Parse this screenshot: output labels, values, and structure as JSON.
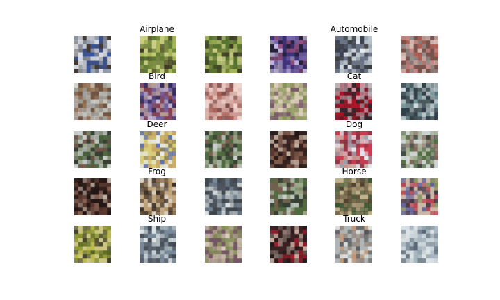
{
  "figure": {
    "class_labels": [
      "Airplane",
      "Automobile",
      "Bird",
      "Cat",
      "Deer",
      "Dog",
      "Frog",
      "Horse",
      "Ship",
      "Truck"
    ]
  },
  "palettes": {
    "airplane": [
      "#2c4ea3",
      "#9aa6b8",
      "#e8ecf2",
      "#3a2c22",
      "#cfd6df"
    ],
    "green": [
      "#4d6b2a",
      "#a7b65a",
      "#d3d58e",
      "#2f2a1e",
      "#6f7e3e"
    ],
    "violet": [
      "#3b2e7a",
      "#7e6bb5",
      "#cfc2e6",
      "#1c1a2e",
      "#9e4f7c"
    ],
    "mono": [
      "#1e2030",
      "#e7ecef",
      "#5a6478",
      "#b8c4cc",
      "#222222"
    ],
    "salmon": [
      "#b55b4f",
      "#d4908a",
      "#8f8f8f",
      "#e8d3cc",
      "#6b4b45"
    ],
    "pale": [
      "#c8cfd0",
      "#9e7a5c",
      "#6c5040",
      "#e4e6e2",
      "#a0a8a6"
    ],
    "purple": [
      "#2a244e",
      "#7260a0",
      "#d6c8d8",
      "#8b3b3f",
      "#c8a98f"
    ],
    "pink": [
      "#c9918b",
      "#f1d8d0",
      "#9c4d42",
      "#6b3a38",
      "#d8b2a8"
    ],
    "olive": [
      "#7c8a4c",
      "#c2b79a",
      "#6a4a5e",
      "#e1d5c2",
      "#8d9d5e"
    ],
    "red": [
      "#c4142a",
      "#7a1220",
      "#e2a4b0",
      "#2a2a2e",
      "#d0d6d8"
    ],
    "sky": [
      "#1d2934",
      "#d9e3e6",
      "#6e8f94",
      "#3c4c50",
      "#b8c6c8"
    ],
    "forest": [
      "#4a6e3e",
      "#7c5e50",
      "#d8e4e2",
      "#2e3c30",
      "#a4b494"
    ],
    "flower": [
      "#d6c86a",
      "#e9eef2",
      "#4d5fa8",
      "#7a6d3a",
      "#c49c4e"
    ],
    "dark": [
      "#2c1c1a",
      "#5a3a30",
      "#8a6454",
      "#d0c0b0",
      "#1a1212"
    ],
    "redblue": [
      "#c6243c",
      "#e6ecf2",
      "#8e9ea8",
      "#7a1a2a",
      "#c8b0a0"
    ],
    "brownface": [
      "#2a1e18",
      "#7a6040",
      "#c0a070",
      "#e6dccc",
      "#5a4630"
    ],
    "ship": [
      "#6a7c8e",
      "#e8eef0",
      "#2a3038",
      "#aab4b8",
      "#3c4450"
    ],
    "horse": [
      "#6a5a40",
      "#9a8a6a",
      "#3c3020",
      "#c8b890",
      "#2e4a2a"
    ],
    "mixed": [
      "#4a5ca0",
      "#b84050",
      "#cfc8b4",
      "#2a2e40",
      "#7a9a5c"
    ],
    "yellowgreen": [
      "#7a8a20",
      "#b8b840",
      "#4a5a18",
      "#2c2c24",
      "#d0c88a"
    ],
    "truck": [
      "#3a3c42",
      "#e6e8e4",
      "#c08a60",
      "#8a7a70",
      "#a8b0b0"
    ],
    "frost": [
      "#dfe6ea",
      "#9eb0bc",
      "#5c6e7e",
      "#3a4050",
      "#c6d2d8"
    ],
    "ruby": [
      "#b02030",
      "#3c2426",
      "#e0c0b0",
      "#8a7a70",
      "#2a1a1a"
    ],
    "ghost": [
      "#e4eaec",
      "#a4b4be",
      "#4a5868",
      "#d0d8dc",
      "#7c8c98"
    ]
  },
  "tiles": [
    [
      "airplane",
      "green",
      "green",
      "violet",
      "mono",
      "salmon"
    ],
    [
      "pale",
      "purple",
      "pink",
      "olive",
      "red",
      "sky"
    ],
    [
      "forest",
      "flower",
      "forest",
      "dark",
      "redblue",
      "forest"
    ],
    [
      "dark",
      "brownface",
      "ship",
      "forest",
      "horse",
      "mixed"
    ],
    [
      "yellowgreen",
      "ship",
      "olive",
      "ruby",
      "truck",
      "ghost"
    ]
  ]
}
